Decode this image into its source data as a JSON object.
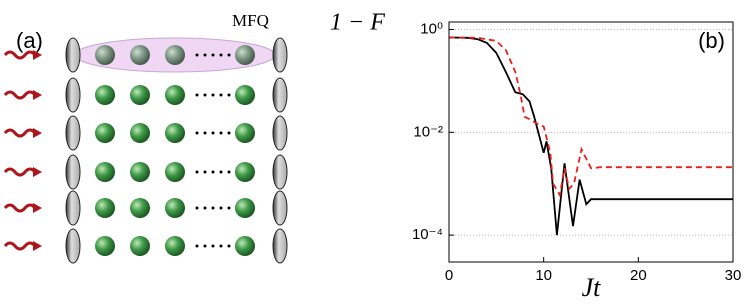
{
  "panel_a": {
    "label": "(a)",
    "annotation": "MFQ"
  },
  "chart_data": {
    "type": "line",
    "panel_label": "(b)",
    "ylabel": "1 − F",
    "xlabel": "Jt",
    "xlim": [
      0,
      30
    ],
    "ylim": [
      3e-05,
      1.4
    ],
    "log_y": true,
    "grid": true,
    "xticks": [
      0,
      10,
      20,
      30
    ],
    "yticks": [
      {
        "value": 0.0001,
        "label": "10⁻⁴"
      },
      {
        "value": 0.01,
        "label": "10⁻²"
      },
      {
        "value": 1,
        "label": "10⁰"
      }
    ],
    "series": [
      {
        "color": "#000000",
        "dash": "solid",
        "x": [
          0,
          2,
          3,
          4,
          5,
          6,
          7,
          7.8,
          8.5,
          9,
          10,
          10.3,
          10.8,
          11.4,
          12.2,
          13.1,
          13.8,
          14.5,
          15,
          20,
          30
        ],
        "values": [
          0.7,
          0.69,
          0.65,
          0.55,
          0.35,
          0.15,
          0.06,
          0.055,
          0.04,
          0.02,
          0.004,
          0.0067,
          0.002,
          0.0001,
          0.0025,
          0.00015,
          0.0012,
          0.0004,
          0.0005,
          0.0005,
          0.0005
        ]
      },
      {
        "color": "#e8201c",
        "dash": "dashed",
        "x": [
          0,
          3,
          5,
          6,
          7,
          7.5,
          8,
          8.5,
          9.5,
          10,
          10.7,
          11,
          11.7,
          12.2,
          12.7,
          13.2,
          14,
          15,
          16,
          20,
          30
        ],
        "values": [
          0.7,
          0.69,
          0.6,
          0.4,
          0.15,
          0.06,
          0.02,
          0.018,
          0.014,
          0.013,
          0.004,
          0.001,
          0.0006,
          0.002,
          0.0008,
          0.001,
          0.0047,
          0.002,
          0.0021,
          0.0021,
          0.0021
        ]
      }
    ]
  }
}
